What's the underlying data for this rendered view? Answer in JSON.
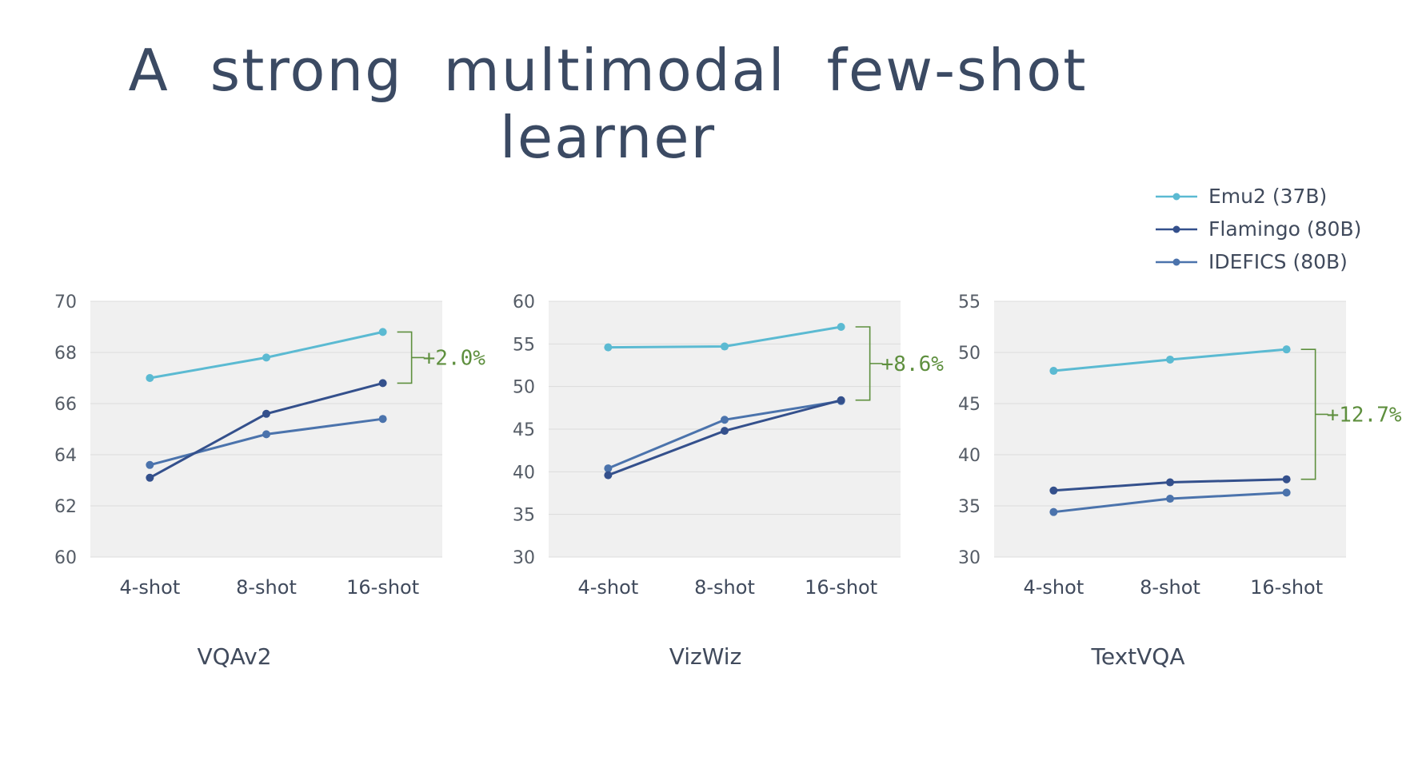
{
  "slide": {
    "title": "A strong multimodal few-shot learner"
  },
  "colors": {
    "emu2": "#5bbad2",
    "flamingo": "#34508c",
    "idefics": "#4b73ac",
    "annotation": "#5e8f3e",
    "plot_bg": "#f0f0f0",
    "grid": "#dcdcdc"
  },
  "legend": [
    {
      "label": "Emu2 (37B)",
      "color": "#5bbad2"
    },
    {
      "label": "Flamingo (80B)",
      "color": "#34508c"
    },
    {
      "label": "IDEFICS (80B)",
      "color": "#4b73ac"
    }
  ],
  "chart_data": [
    {
      "type": "line",
      "title": "VQAv2",
      "categories": [
        "4-shot",
        "8-shot",
        "16-shot"
      ],
      "ylim": [
        60,
        70
      ],
      "yticks": [
        60,
        62,
        64,
        66,
        68,
        70
      ],
      "grid": true,
      "series": [
        {
          "name": "Emu2 (37B)",
          "color": "#5bbad2",
          "values": [
            67.0,
            67.8,
            68.8
          ]
        },
        {
          "name": "Flamingo (80B)",
          "color": "#34508c",
          "values": [
            63.1,
            65.6,
            66.8
          ]
        },
        {
          "name": "IDEFICS (80B)",
          "color": "#4b73ac",
          "values": [
            63.6,
            64.8,
            65.4
          ]
        }
      ],
      "annotation": {
        "text": "+2.0%",
        "from": 66.8,
        "to": 68.8
      }
    },
    {
      "type": "line",
      "title": "VizWiz",
      "categories": [
        "4-shot",
        "8-shot",
        "16-shot"
      ],
      "ylim": [
        30,
        60
      ],
      "yticks": [
        30,
        35,
        40,
        45,
        50,
        55,
        60
      ],
      "grid": true,
      "series": [
        {
          "name": "Emu2 (37B)",
          "color": "#5bbad2",
          "values": [
            54.6,
            54.7,
            57.0
          ]
        },
        {
          "name": "Flamingo (80B)",
          "color": "#34508c",
          "values": [
            39.6,
            44.8,
            48.4
          ]
        },
        {
          "name": "IDEFICS (80B)",
          "color": "#4b73ac",
          "values": [
            40.4,
            46.1,
            48.3
          ]
        }
      ],
      "annotation": {
        "text": "+8.6%",
        "from": 48.4,
        "to": 57.0
      }
    },
    {
      "type": "line",
      "title": "TextVQA",
      "categories": [
        "4-shot",
        "8-shot",
        "16-shot"
      ],
      "ylim": [
        30,
        55
      ],
      "yticks": [
        30,
        35,
        40,
        45,
        50,
        55
      ],
      "grid": true,
      "series": [
        {
          "name": "Emu2 (37B)",
          "color": "#5bbad2",
          "values": [
            48.2,
            49.3,
            50.3
          ]
        },
        {
          "name": "Flamingo (80B)",
          "color": "#34508c",
          "values": [
            36.5,
            37.3,
            37.6
          ]
        },
        {
          "name": "IDEFICS (80B)",
          "color": "#4b73ac",
          "values": [
            34.4,
            35.7,
            36.3
          ]
        }
      ],
      "annotation": {
        "text": "+12.7%",
        "from": 37.6,
        "to": 50.3
      }
    }
  ]
}
